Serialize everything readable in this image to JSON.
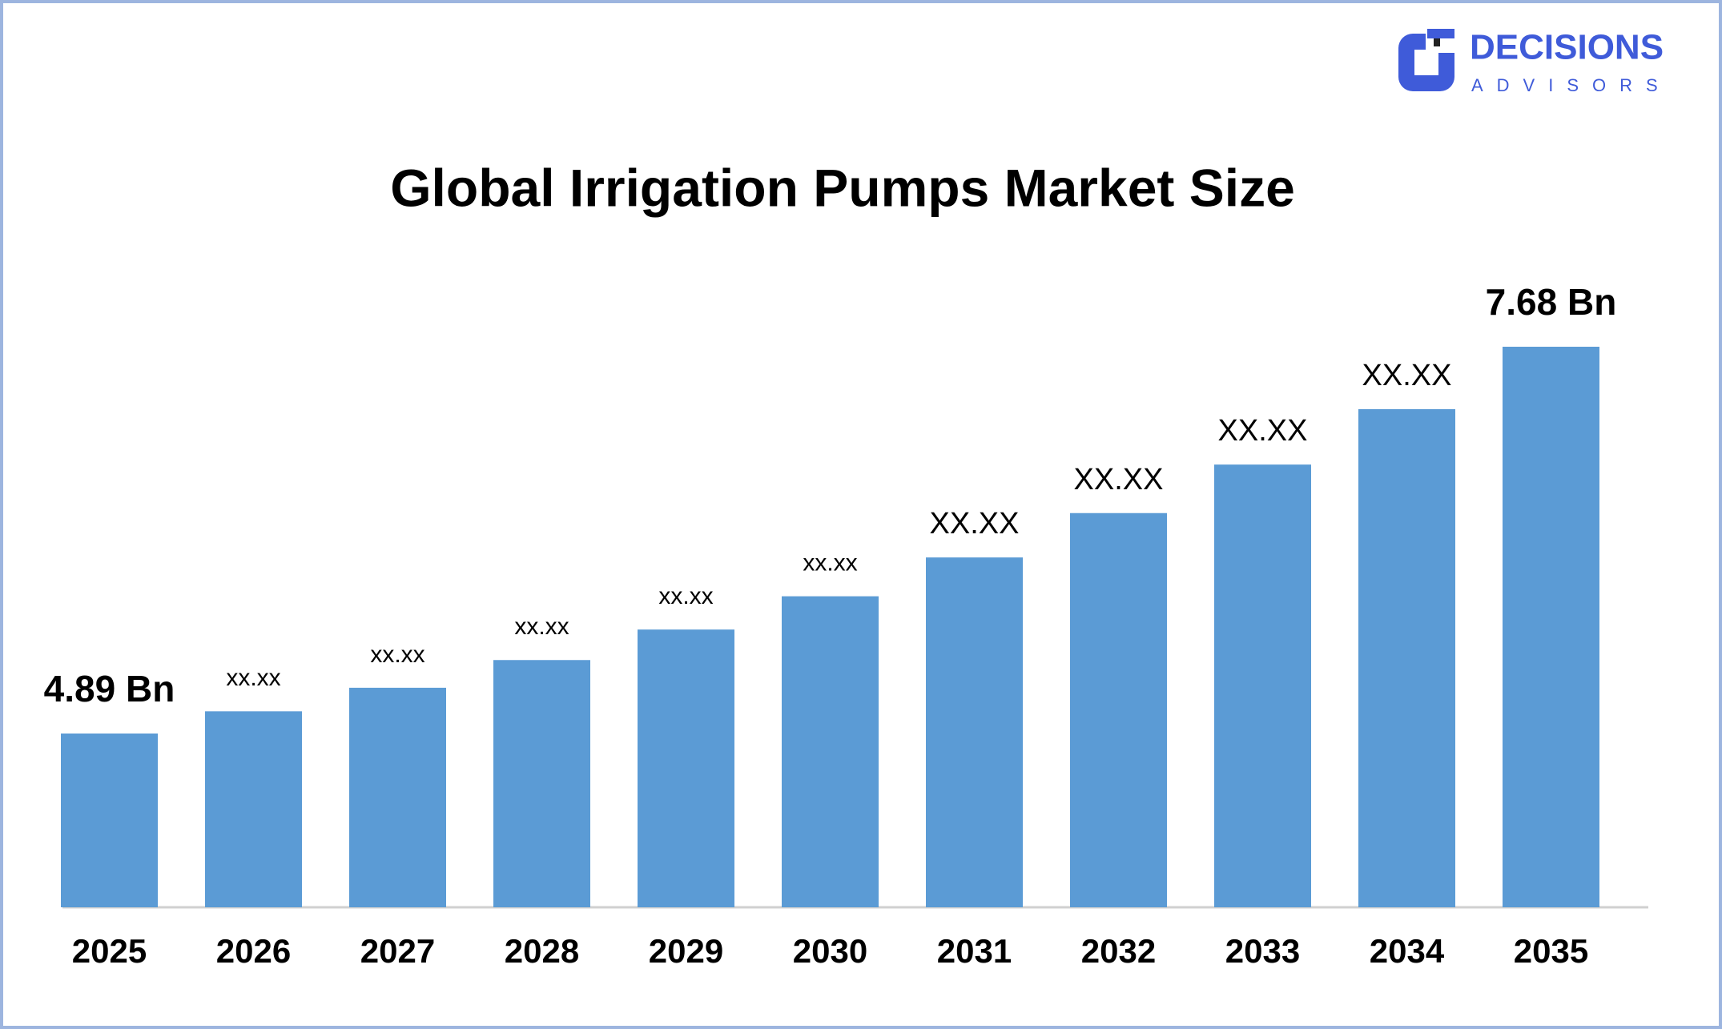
{
  "logo": {
    "name": "DECISIONS",
    "tagline": "ADVISORS"
  },
  "chart_data": {
    "type": "bar",
    "title": "Global Irrigation Pumps Market Size",
    "categories": [
      "2025",
      "2026",
      "2027",
      "2028",
      "2029",
      "2030",
      "2031",
      "2032",
      "2033",
      "2034",
      "2035"
    ],
    "values": [
      4.89,
      5.05,
      5.22,
      5.42,
      5.64,
      5.88,
      6.16,
      6.48,
      6.83,
      7.23,
      7.68
    ],
    "value_labels": [
      "4.89 Bn",
      "xx.xx",
      "xx.xx",
      "xx.xx",
      "xx.xx",
      "xx.xx",
      "XX.XX",
      "XX.XX",
      "XX.XX",
      "XX.XX",
      "7.68 Bn"
    ],
    "color": "#5b9bd5"
  }
}
